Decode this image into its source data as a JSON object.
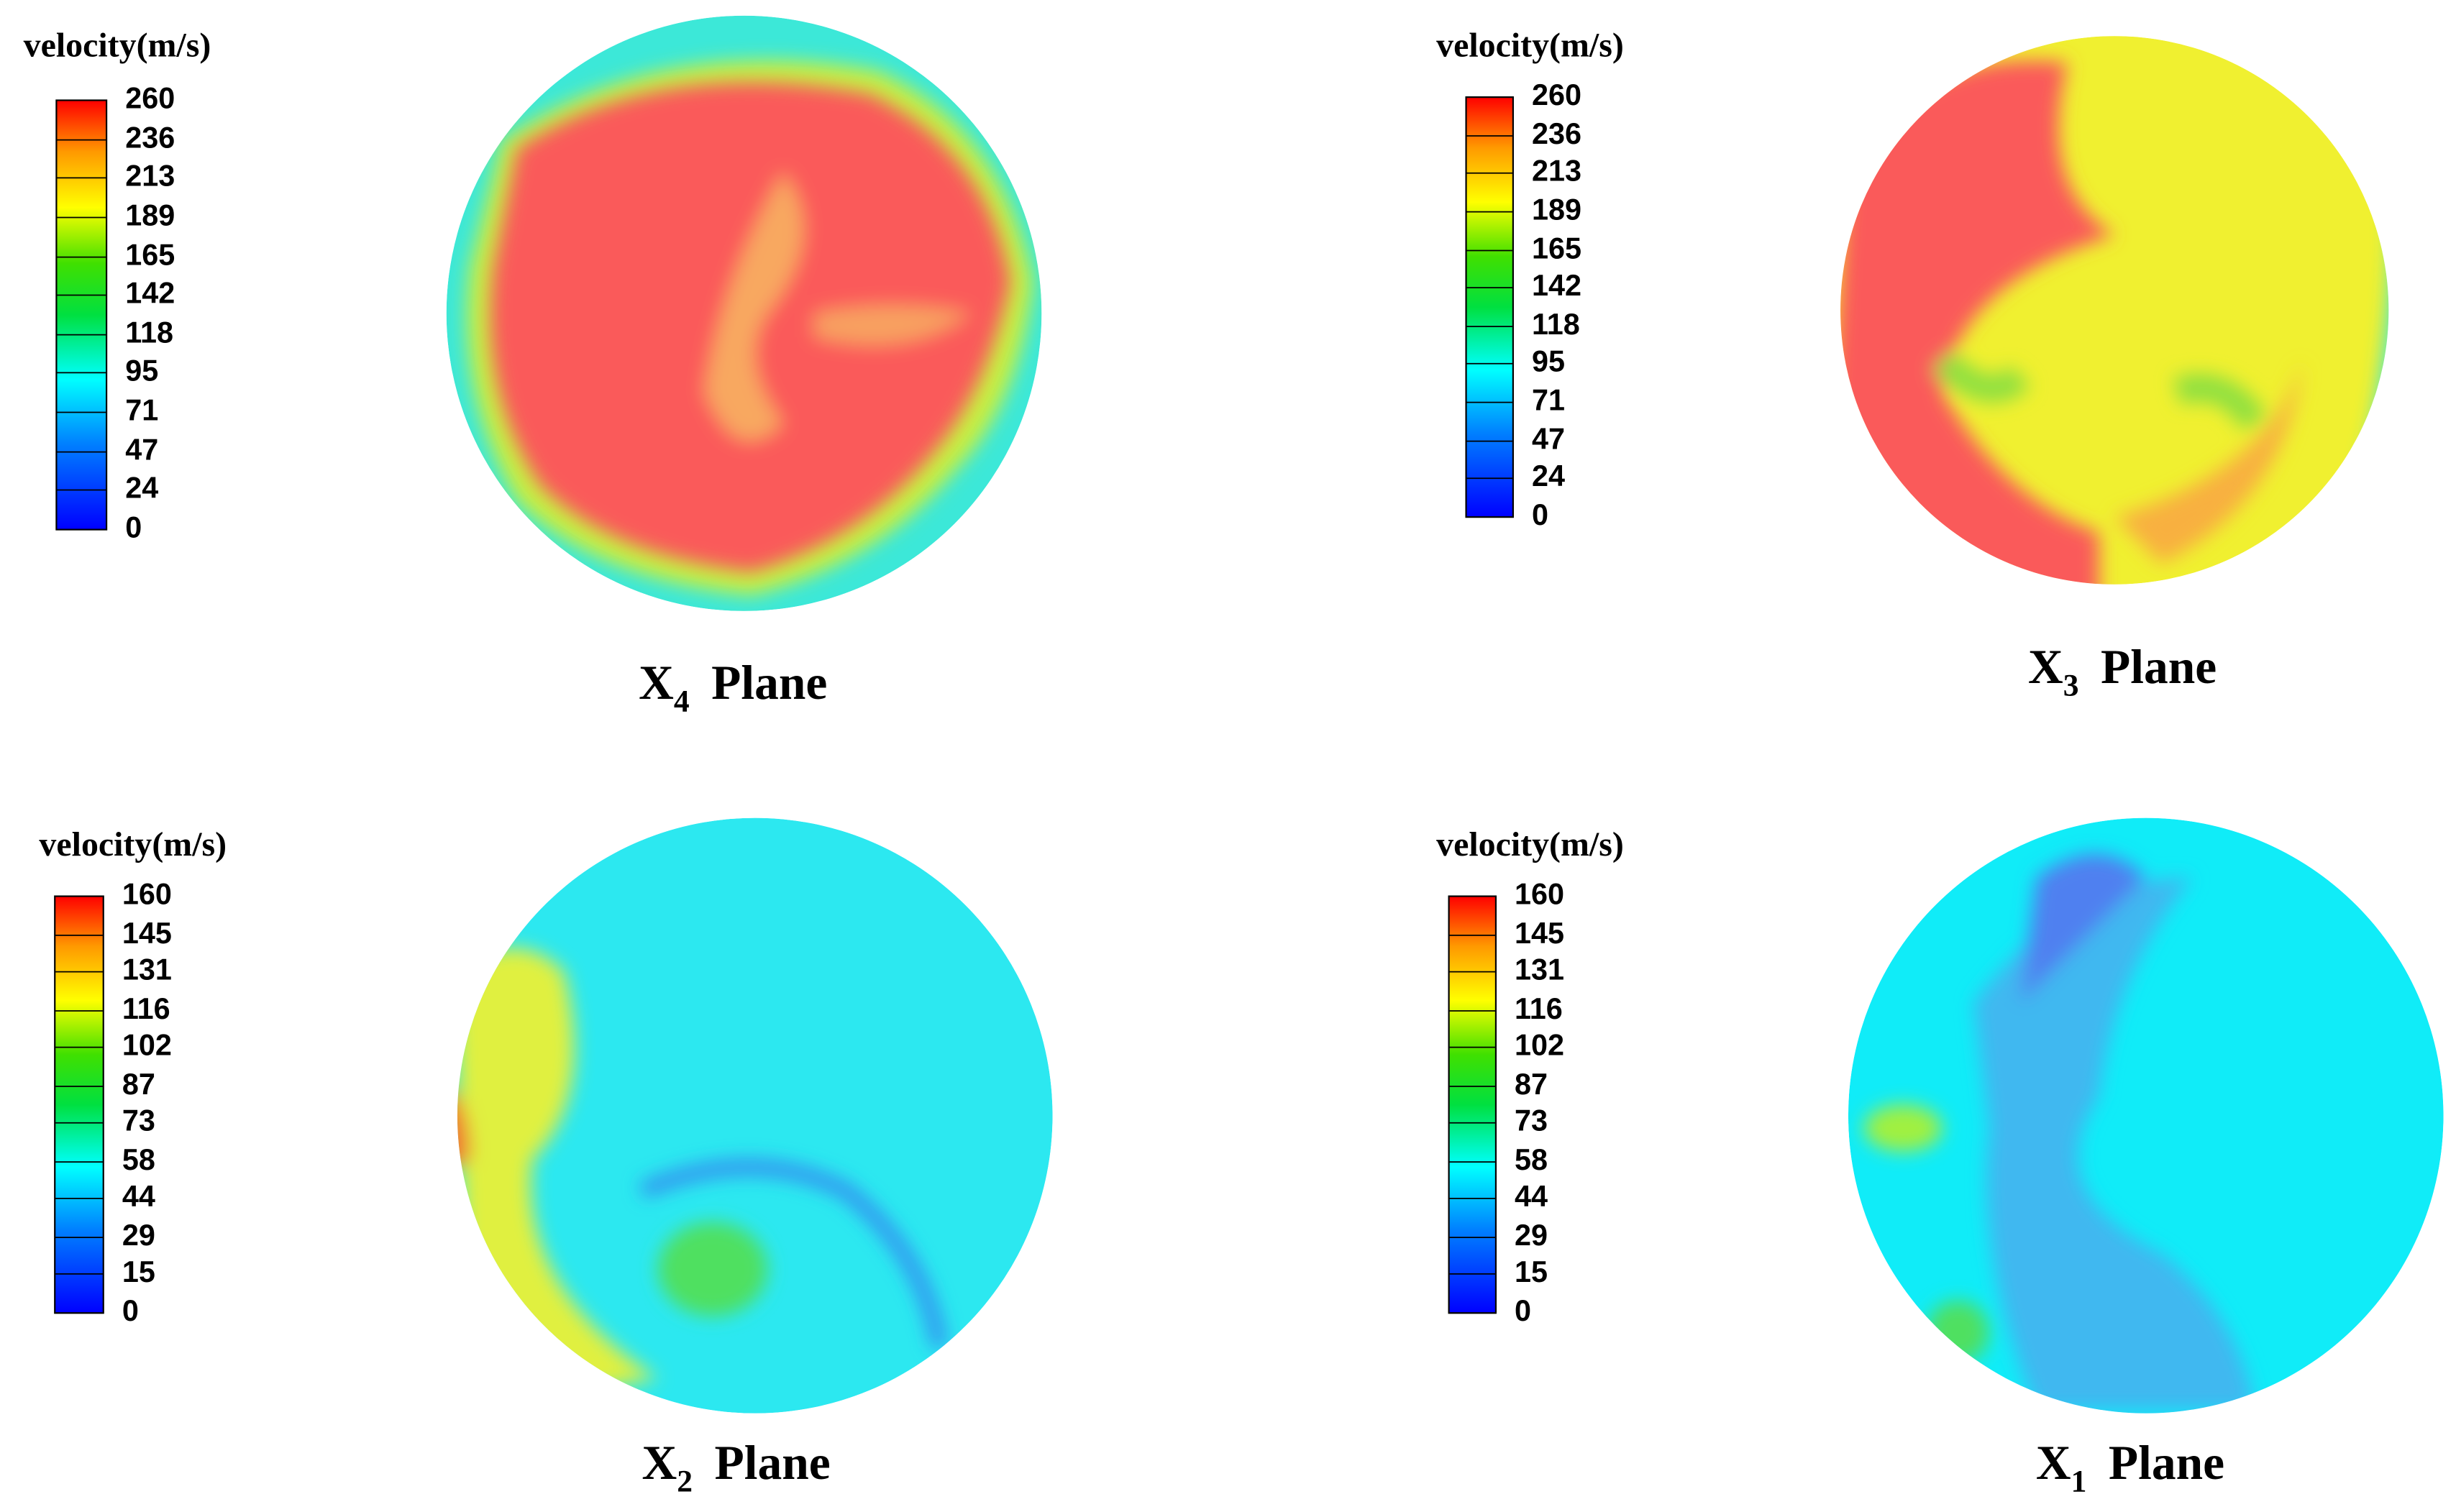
{
  "chart_data": [
    {
      "type": "contour",
      "colorbar_title": "velocity(m/s)",
      "vlim": [
        0,
        260
      ],
      "ticks": [
        0,
        24,
        47,
        71,
        95,
        118,
        142,
        165,
        189,
        213,
        236,
        260
      ],
      "label": [
        "X",
        "4",
        "Plane"
      ]
    },
    {
      "type": "contour",
      "colorbar_title": "velocity(m/s)",
      "vlim": [
        0,
        260
      ],
      "ticks": [
        0,
        24,
        47,
        71,
        95,
        118,
        142,
        165,
        189,
        213,
        236,
        260
      ],
      "label": [
        "X",
        "3",
        "Plane"
      ]
    },
    {
      "type": "contour",
      "colorbar_title": "velocity(m/s)",
      "vlim": [
        0,
        160
      ],
      "ticks": [
        0,
        15,
        29,
        44,
        58,
        73,
        87,
        102,
        116,
        131,
        145,
        160
      ],
      "label": [
        "X",
        "2",
        "Plane"
      ]
    },
    {
      "type": "contour",
      "colorbar_title": "velocity(m/s)",
      "vlim": [
        0,
        160
      ],
      "ticks": [
        0,
        15,
        29,
        44,
        58,
        73,
        87,
        102,
        116,
        131,
        145,
        160
      ],
      "label": [
        "X",
        "1",
        "Plane"
      ]
    }
  ]
}
